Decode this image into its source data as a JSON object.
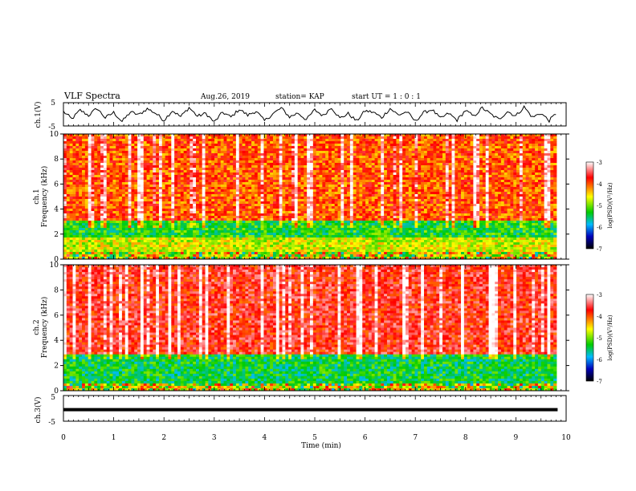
{
  "header": {
    "title": "VLF Spectra",
    "date": "Aug.26, 2019",
    "station": "station= KAP",
    "start": "start  UT =   1 : 0  : 1"
  },
  "chart_data": [
    {
      "type": "line",
      "panel": "ch1-waveform",
      "ylabel": "ch.1(V)",
      "ylim": [
        -5,
        5
      ],
      "yticks": [
        "5",
        "-5"
      ],
      "xlim": [
        0,
        10
      ],
      "trace_color": "#000000",
      "trace": {
        "x_range_min": [
          0,
          9.83
        ],
        "samples": [
          1.2,
          -2.0,
          1.8,
          -0.5,
          2.6,
          -1.5,
          0.8,
          -3.1,
          1.0,
          -0.2,
          2.4,
          0.5,
          -2.6,
          1.6,
          -1.0,
          2.9,
          -0.8,
          0.4,
          -3.4,
          0.9,
          -1.2,
          2.2,
          -0.4,
          1.4,
          -2.8,
          0.2,
          2.7,
          -1.1,
          0.6,
          -2.3,
          1.9,
          -0.6,
          3.0,
          -1.7,
          0.3,
          -2.9,
          1.5,
          0.9,
          -1.4,
          2.5,
          -0.3,
          1.1,
          -3.0,
          0.7,
          2.1,
          -1.8,
          0.4,
          -2.5,
          1.7,
          -0.9,
          2.8,
          0.1,
          -2.2,
          1.3,
          -0.7,
          3.2,
          -1.3,
          0.5,
          -2.7,
          1.0
        ]
      }
    },
    {
      "type": "heatmap",
      "panel": "ch1-spectrogram",
      "ylabel": "ch.1\nFrequency (kHz)",
      "ylim": [
        0,
        10
      ],
      "yticks": [
        "0",
        "2",
        "4",
        "6",
        "8",
        "10"
      ],
      "xlim": [
        0,
        10
      ],
      "colorbar": {
        "label": "log(PSD)(V²/Hz)",
        "range": [
          -7,
          -3
        ],
        "ticks": [
          "-3",
          "-4",
          "-5",
          "-6",
          "-7"
        ],
        "colors": [
          "#ffffff",
          "#ff0000",
          "#ffff00",
          "#00cc00",
          "#00bbff",
          "#0000bb",
          "#000000"
        ]
      },
      "bands": [
        {
          "f_khz": [
            0.0,
            0.5
          ],
          "level": "mixed"
        },
        {
          "f_khz": [
            0.5,
            1.8
          ],
          "level": -4.7
        },
        {
          "f_khz": [
            1.8,
            3.0
          ],
          "level": -5.3
        },
        {
          "f_khz": [
            3.0,
            10.0
          ],
          "level": -4.0
        }
      ]
    },
    {
      "type": "heatmap",
      "panel": "ch2-spectrogram",
      "ylabel": "ch.2\nFrequency (kHz)",
      "ylim": [
        0,
        10
      ],
      "yticks": [
        "0",
        "2",
        "4",
        "6",
        "8",
        "10"
      ],
      "xlim": [
        0,
        10
      ],
      "colorbar": {
        "label": "log(PSD)(V²/Hz)",
        "range": [
          -7,
          -3
        ],
        "ticks": [
          "-3",
          "-4",
          "-5",
          "-6",
          "-7"
        ],
        "colors": [
          "#ffffff",
          "#ff0000",
          "#ffff00",
          "#00cc00",
          "#00bbff",
          "#0000bb",
          "#000000"
        ]
      },
      "bands": [
        {
          "f_khz": [
            0.0,
            0.5
          ],
          "level": "mixed"
        },
        {
          "f_khz": [
            0.5,
            2.9
          ],
          "level": -5.4
        },
        {
          "f_khz": [
            2.9,
            10.0
          ],
          "level": -3.7
        }
      ]
    },
    {
      "type": "line",
      "panel": "ch3-waveform",
      "ylabel": "ch.3(V)",
      "ylim": [
        -5,
        5
      ],
      "yticks": [
        "5",
        "-5"
      ],
      "xlim": [
        0,
        10
      ],
      "trace_color": "#000000",
      "trace": {
        "x_range_min": [
          0,
          9.83
        ],
        "constant": -0.5
      }
    }
  ],
  "xaxis": {
    "label": "Time (min)",
    "ticks": [
      "0",
      "1",
      "2",
      "3",
      "4",
      "5",
      "6",
      "7",
      "8",
      "9",
      "10"
    ]
  }
}
